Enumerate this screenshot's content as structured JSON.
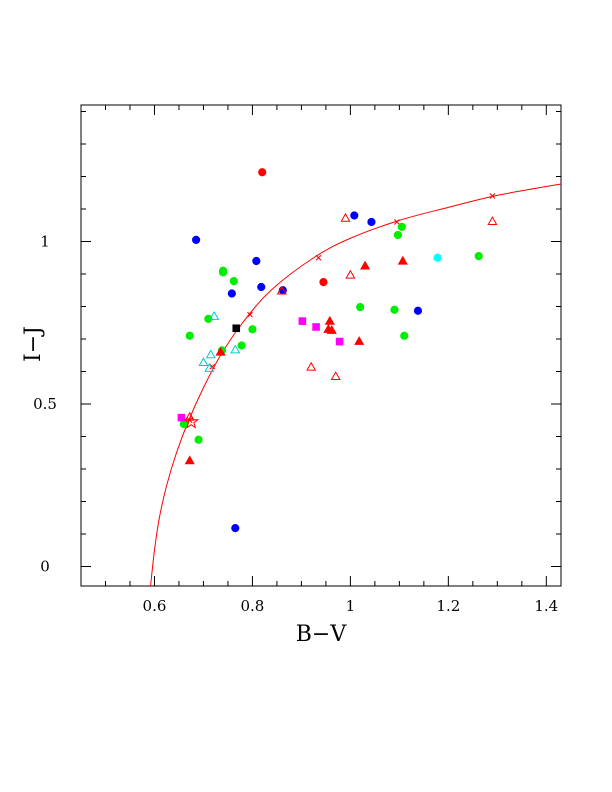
{
  "chart_data": {
    "type": "scatter",
    "xlabel": "B−V",
    "ylabel": "I−J",
    "xlim": [
      0.45,
      1.43
    ],
    "ylim": [
      -0.06,
      1.42
    ],
    "x_ticks": [
      {
        "value": 0.6,
        "label": "0.6"
      },
      {
        "value": 0.8,
        "label": "0.8"
      },
      {
        "value": 1.0,
        "label": "1"
      },
      {
        "value": 1.2,
        "label": "1.2"
      },
      {
        "value": 1.4,
        "label": "1.4"
      }
    ],
    "y_ticks": [
      {
        "value": 0,
        "label": "0"
      },
      {
        "value": 0.5,
        "label": "0.5"
      },
      {
        "value": 1.0,
        "label": "1"
      }
    ],
    "grid": false,
    "legend": "none",
    "curve": {
      "color": "#ff0000",
      "points": [
        [
          0.592,
          -0.06
        ],
        [
          0.6,
          0.05
        ],
        [
          0.61,
          0.15
        ],
        [
          0.625,
          0.25
        ],
        [
          0.645,
          0.35
        ],
        [
          0.67,
          0.45
        ],
        [
          0.7,
          0.55
        ],
        [
          0.735,
          0.65
        ],
        [
          0.78,
          0.75
        ],
        [
          0.838,
          0.85
        ],
        [
          0.925,
          0.95
        ],
        [
          1.0,
          1.01
        ],
        [
          1.1,
          1.065
        ],
        [
          1.2,
          1.105
        ],
        [
          1.3,
          1.142
        ],
        [
          1.43,
          1.177
        ]
      ],
      "markers": [
        [
          0.672,
          0.45
        ],
        [
          0.718,
          0.615
        ],
        [
          0.795,
          0.775
        ],
        [
          0.862,
          0.85
        ],
        [
          0.935,
          0.95
        ],
        [
          1.095,
          1.06
        ],
        [
          1.29,
          1.14
        ]
      ],
      "marker": "cross"
    },
    "series": [
      {
        "marker": "circle",
        "filled": true,
        "color": "#0000ff",
        "points": [
          [
            0.685,
            1.005
          ],
          [
            0.808,
            0.94
          ],
          [
            0.818,
            0.86
          ],
          [
            0.758,
            0.84
          ],
          [
            0.862,
            0.85
          ],
          [
            1.008,
            1.08
          ],
          [
            1.043,
            1.06
          ],
          [
            1.138,
            0.787
          ],
          [
            0.765,
            0.118
          ]
        ]
      },
      {
        "marker": "circle",
        "filled": true,
        "color": "#00ee00",
        "points": [
          [
            0.672,
            0.71
          ],
          [
            0.71,
            0.762
          ],
          [
            0.74,
            0.91
          ],
          [
            0.74,
            0.905
          ],
          [
            0.762,
            0.878
          ],
          [
            0.8,
            0.73
          ],
          [
            0.738,
            0.665
          ],
          [
            0.778,
            0.68
          ],
          [
            0.66,
            0.438
          ],
          [
            0.69,
            0.39
          ],
          [
            1.02,
            0.798
          ],
          [
            1.09,
            0.79
          ],
          [
            1.11,
            0.71
          ],
          [
            1.097,
            1.02
          ],
          [
            1.105,
            1.045
          ],
          [
            1.262,
            0.955
          ]
        ]
      },
      {
        "marker": "circle",
        "filled": true,
        "color": "#ff0000",
        "points": [
          [
            0.82,
            1.213
          ],
          [
            0.945,
            0.875
          ]
        ]
      },
      {
        "marker": "circle",
        "filled": true,
        "color": "#00ffff",
        "points": [
          [
            1.178,
            0.95
          ]
        ]
      },
      {
        "marker": "square",
        "filled": true,
        "color": "#000000",
        "points": [
          [
            0.767,
            0.733
          ]
        ]
      },
      {
        "marker": "square",
        "filled": true,
        "color": "#ff00ff",
        "points": [
          [
            0.655,
            0.458
          ],
          [
            0.902,
            0.755
          ],
          [
            0.93,
            0.737
          ],
          [
            0.978,
            0.692
          ]
        ]
      },
      {
        "marker": "triangle",
        "filled": true,
        "color": "#ff0000",
        "points": [
          [
            0.672,
            0.326
          ],
          [
            0.735,
            0.66
          ],
          [
            0.958,
            0.755
          ],
          [
            0.955,
            0.73
          ],
          [
            0.962,
            0.727
          ],
          [
            1.018,
            0.693
          ],
          [
            1.03,
            0.925
          ],
          [
            1.107,
            0.94
          ]
        ]
      },
      {
        "marker": "triangle",
        "filled": false,
        "color": "#ff0000",
        "points": [
          [
            0.86,
            0.848
          ],
          [
            0.92,
            0.614
          ],
          [
            0.97,
            0.585
          ],
          [
            0.99,
            1.072
          ],
          [
            1.0,
            0.897
          ],
          [
            1.29,
            1.062
          ],
          [
            0.672,
            0.46
          ]
        ]
      },
      {
        "marker": "triangle",
        "filled": false,
        "color": "#00cccc",
        "points": [
          [
            0.7,
            0.628
          ],
          [
            0.715,
            0.652
          ],
          [
            0.722,
            0.77
          ],
          [
            0.712,
            0.61
          ],
          [
            0.765,
            0.667
          ]
        ]
      },
      {
        "marker": "star",
        "filled": false,
        "color": "#ff0000",
        "points": [
          [
            0.675,
            0.445
          ]
        ]
      }
    ]
  }
}
